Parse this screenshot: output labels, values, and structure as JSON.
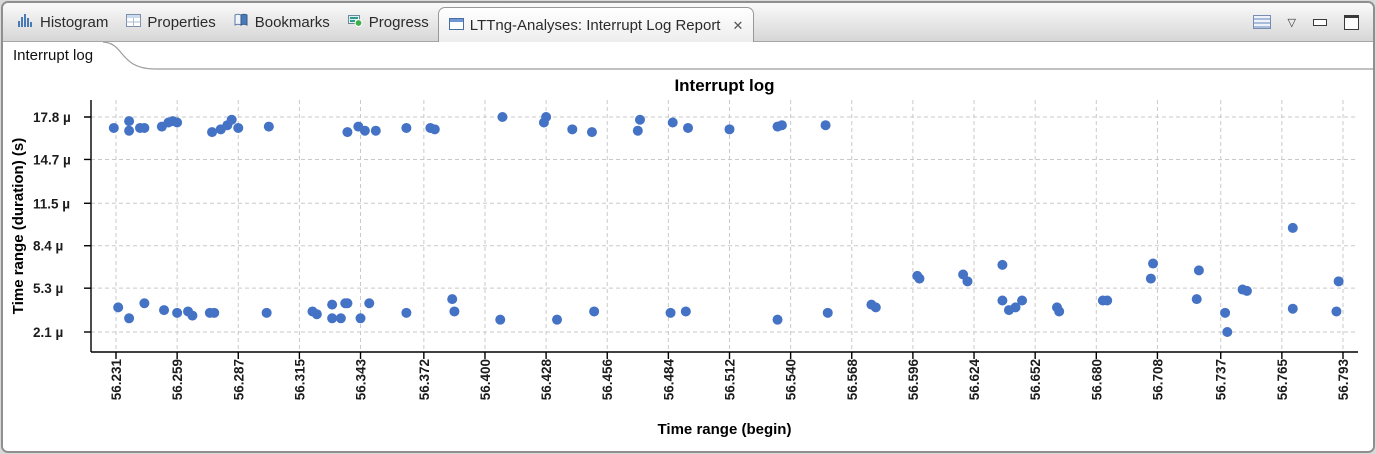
{
  "view": {
    "tabs": [
      {
        "label": "Histogram",
        "icon": "histogram-icon",
        "active": false
      },
      {
        "label": "Properties",
        "icon": "properties-icon",
        "active": false
      },
      {
        "label": "Bookmarks",
        "icon": "bookmarks-icon",
        "active": false
      },
      {
        "label": "Progress",
        "icon": "progress-icon",
        "active": false
      },
      {
        "label": "LTTng-Analyses: Interrupt Log Report",
        "icon": "window-icon",
        "active": true
      }
    ],
    "icons": {
      "close": "✕",
      "dropdown": "▽"
    },
    "subtab": "Interrupt log"
  },
  "chart_data": {
    "type": "scatter",
    "title": "Interrupt log",
    "xlabel": "Time range (begin)",
    "ylabel": "Time range (duration) (s)",
    "grid": "dashed",
    "legend": "none",
    "point_color": "#4472c4",
    "x_ticks": [
      "56.231",
      "56.259",
      "56.287",
      "56.315",
      "56.343",
      "56.372",
      "56.400",
      "56.428",
      "56.456",
      "56.484",
      "56.512",
      "56.540",
      "56.568",
      "56.596",
      "56.624",
      "56.652",
      "56.680",
      "56.708",
      "56.737",
      "56.765",
      "56.793"
    ],
    "x_tick_values": [
      56.231,
      56.259,
      56.287,
      56.315,
      56.343,
      56.372,
      56.4,
      56.428,
      56.456,
      56.484,
      56.512,
      56.54,
      56.568,
      56.596,
      56.624,
      56.652,
      56.68,
      56.708,
      56.737,
      56.765,
      56.793
    ],
    "y_ticks": [
      "2.1 µ",
      "5.3 µ",
      "8.4 µ",
      "11.5 µ",
      "14.7 µ",
      "17.8 µ"
    ],
    "y_tick_values": [
      2.1,
      5.3,
      8.4,
      11.5,
      14.7,
      17.8
    ],
    "y_unit": "µs",
    "points": [
      [
        56.23,
        17.0
      ],
      [
        56.237,
        17.5
      ],
      [
        56.237,
        16.8
      ],
      [
        56.242,
        17.0
      ],
      [
        56.244,
        17.0
      ],
      [
        56.252,
        17.1
      ],
      [
        56.255,
        17.4
      ],
      [
        56.257,
        17.5
      ],
      [
        56.259,
        17.4
      ],
      [
        56.275,
        16.7
      ],
      [
        56.279,
        16.9
      ],
      [
        56.282,
        17.2
      ],
      [
        56.284,
        17.6
      ],
      [
        56.287,
        17.0
      ],
      [
        56.301,
        17.1
      ],
      [
        56.337,
        16.7
      ],
      [
        56.342,
        17.1
      ],
      [
        56.345,
        16.8
      ],
      [
        56.35,
        16.8
      ],
      [
        56.364,
        17.0
      ],
      [
        56.375,
        17.0
      ],
      [
        56.377,
        16.9
      ],
      [
        56.408,
        17.8
      ],
      [
        56.427,
        17.4
      ],
      [
        56.428,
        17.8
      ],
      [
        56.44,
        16.9
      ],
      [
        56.449,
        16.7
      ],
      [
        56.47,
        16.8
      ],
      [
        56.471,
        17.6
      ],
      [
        56.486,
        17.4
      ],
      [
        56.493,
        17.0
      ],
      [
        56.512,
        16.9
      ],
      [
        56.534,
        17.1
      ],
      [
        56.536,
        17.2
      ],
      [
        56.556,
        17.2
      ],
      [
        56.232,
        3.9
      ],
      [
        56.237,
        3.1
      ],
      [
        56.244,
        4.2
      ],
      [
        56.253,
        3.7
      ],
      [
        56.259,
        3.5
      ],
      [
        56.264,
        3.6
      ],
      [
        56.266,
        3.3
      ],
      [
        56.274,
        3.5
      ],
      [
        56.276,
        3.5
      ],
      [
        56.3,
        3.5
      ],
      [
        56.321,
        3.6
      ],
      [
        56.323,
        3.4
      ],
      [
        56.33,
        3.1
      ],
      [
        56.33,
        4.1
      ],
      [
        56.334,
        3.1
      ],
      [
        56.336,
        4.2
      ],
      [
        56.337,
        4.2
      ],
      [
        56.343,
        3.1
      ],
      [
        56.347,
        4.2
      ],
      [
        56.364,
        3.5
      ],
      [
        56.385,
        4.5
      ],
      [
        56.386,
        3.6
      ],
      [
        56.407,
        3.0
      ],
      [
        56.433,
        3.0
      ],
      [
        56.45,
        3.6
      ],
      [
        56.485,
        3.5
      ],
      [
        56.492,
        3.6
      ],
      [
        56.534,
        3.0
      ],
      [
        56.557,
        3.5
      ],
      [
        56.577,
        4.1
      ],
      [
        56.579,
        3.9
      ],
      [
        56.598,
        6.2
      ],
      [
        56.599,
        6.0
      ],
      [
        56.619,
        6.3
      ],
      [
        56.621,
        5.8
      ],
      [
        56.637,
        7.0
      ],
      [
        56.637,
        4.4
      ],
      [
        56.64,
        3.7
      ],
      [
        56.643,
        3.9
      ],
      [
        56.646,
        4.4
      ],
      [
        56.662,
        3.9
      ],
      [
        56.663,
        3.6
      ],
      [
        56.683,
        4.4
      ],
      [
        56.685,
        4.4
      ],
      [
        56.705,
        6.0
      ],
      [
        56.706,
        7.1
      ],
      [
        56.726,
        4.5
      ],
      [
        56.727,
        6.6
      ],
      [
        56.739,
        3.5
      ],
      [
        56.74,
        2.1
      ],
      [
        56.747,
        5.2
      ],
      [
        56.749,
        5.1
      ],
      [
        56.77,
        3.8
      ],
      [
        56.77,
        9.7
      ],
      [
        56.79,
        3.6
      ],
      [
        56.791,
        5.8
      ]
    ]
  }
}
